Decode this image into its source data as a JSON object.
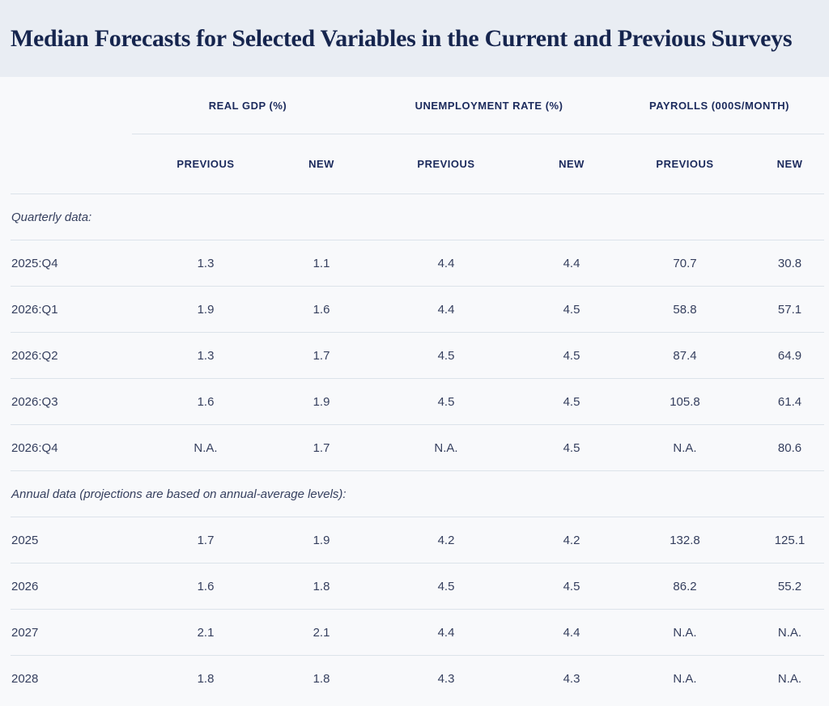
{
  "page": {
    "title": "Median Forecasts for Selected Variables in the Current and Previous Surveys",
    "colors": {
      "title_band_bg": "#e9edf3",
      "body_bg": "#f8f9fb",
      "title_text": "#16254e",
      "header_text": "#1b2a5c",
      "data_text": "#353f5e",
      "divider_line": "#dce3ea"
    }
  },
  "chart_data": {
    "type": "table",
    "title": "Median Forecasts for Selected Variables in the Current and Previous Surveys",
    "column_groups": [
      "REAL GDP (%)",
      "UNEMPLOYMENT RATE (%)",
      "PAYROLLS (000S/MONTH)"
    ],
    "sub_columns": [
      "PREVIOUS",
      "NEW",
      "PREVIOUS",
      "NEW",
      "PREVIOUS",
      "NEW"
    ],
    "sections": [
      {
        "label": "Quarterly data:",
        "rows": [
          {
            "label": "2025:Q4",
            "values": [
              "1.3",
              "1.1",
              "4.4",
              "4.4",
              "70.7",
              "30.8"
            ]
          },
          {
            "label": "2026:Q1",
            "values": [
              "1.9",
              "1.6",
              "4.4",
              "4.5",
              "58.8",
              "57.1"
            ]
          },
          {
            "label": "2026:Q2",
            "values": [
              "1.3",
              "1.7",
              "4.5",
              "4.5",
              "87.4",
              "64.9"
            ]
          },
          {
            "label": "2026:Q3",
            "values": [
              "1.6",
              "1.9",
              "4.5",
              "4.5",
              "105.8",
              "61.4"
            ]
          },
          {
            "label": "2026:Q4",
            "values": [
              "N.A.",
              "1.7",
              "N.A.",
              "4.5",
              "N.A.",
              "80.6"
            ]
          }
        ]
      },
      {
        "label": "Annual data (projections are based on annual-average levels):",
        "rows": [
          {
            "label": "2025",
            "values": [
              "1.7",
              "1.9",
              "4.2",
              "4.2",
              "132.8",
              "125.1"
            ]
          },
          {
            "label": "2026",
            "values": [
              "1.6",
              "1.8",
              "4.5",
              "4.5",
              "86.2",
              "55.2"
            ]
          },
          {
            "label": "2027",
            "values": [
              "2.1",
              "2.1",
              "4.4",
              "4.4",
              "N.A.",
              "N.A."
            ]
          },
          {
            "label": "2028",
            "values": [
              "1.8",
              "1.8",
              "4.3",
              "4.3",
              "N.A.",
              "N.A."
            ]
          }
        ]
      }
    ]
  }
}
